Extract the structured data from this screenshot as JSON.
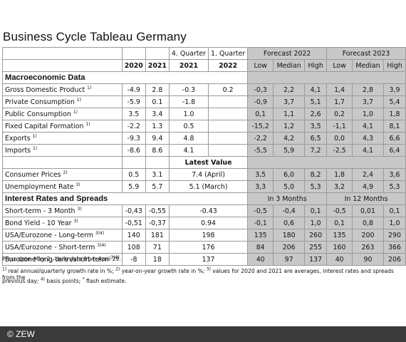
{
  "title": "Business Cycle Tableau Germany",
  "headers": {
    "q4": "4. Quarter",
    "q1": "1. Quarter",
    "forecast2022": "Forecast 2022",
    "forecast2023": "Forecast 2023",
    "y2020": "2020",
    "y2021": "2021",
    "q4year": "2021",
    "q1year": "2022",
    "low": "Low",
    "median": "Median",
    "high": "High"
  },
  "sections": {
    "macro": "Macroeconomic Data",
    "interest": "Interest Rates and Spreads",
    "latest": "Latest Value",
    "in3": "In 3 Months",
    "in12": "In 12 Months"
  },
  "macro_rows": [
    {
      "label": "Gross Domestic Product",
      "fn": "1)",
      "v": [
        "-4.9",
        "2.8",
        "-0.3",
        "0.2",
        "-0,3",
        "2,2",
        "4,1",
        "1,4",
        "2,8",
        "3,9"
      ]
    },
    {
      "label": "Private Consumption",
      "fn": "1)",
      "v": [
        "-5.9",
        "0.1",
        "-1.8",
        "",
        "-0,9",
        "3,7",
        "5,1",
        "1,7",
        "3,7",
        "5,4"
      ]
    },
    {
      "label": "Public Consumption",
      "fn": "1)",
      "v": [
        "3.5",
        "3.4",
        "1.0",
        "",
        "0,1",
        "1,1",
        "2,6",
        "0,2",
        "1,0",
        "1,8"
      ]
    },
    {
      "label": "Fixed Capital Formation",
      "fn": "1)",
      "v": [
        "-2.2",
        "1.3",
        "0.5",
        "",
        "-15,2",
        "1,2",
        "3,5",
        "-1,1",
        "4,1",
        "8,1"
      ]
    },
    {
      "label": "Exports",
      "fn": "1)",
      "v": [
        "-9.3",
        "9.4",
        "4.8",
        "",
        "-2,2",
        "4,2",
        "6,5",
        "0,0",
        "4,3",
        "6,6"
      ]
    },
    {
      "label": "Imports",
      "fn": "1)",
      "v": [
        "-8.6",
        "8.6",
        "4.1",
        "",
        "-5,5",
        "5,9",
        "7,2",
        "-2,5",
        "4,1",
        "6,4"
      ]
    }
  ],
  "latest_rows": [
    {
      "label": "Consumer Prices",
      "fn": "2)",
      "v": [
        "0.5",
        "3.1",
        "7.4 (April)",
        "3,5",
        "6,0",
        "8,2",
        "1,8",
        "2,4",
        "3,6"
      ]
    },
    {
      "label": "Unemployment Rate",
      "fn": "3)",
      "v": [
        "5.9",
        "5.7",
        "5.1 (March)",
        "3,3",
        "5,0",
        "5,3",
        "3,2",
        "4,9",
        "5,3"
      ]
    }
  ],
  "interest_rows": [
    {
      "label": "Short-term - 3 Month",
      "fn": "3)",
      "v": [
        "-0,43",
        "-0,55",
        "-0.43",
        "-0,5",
        "-0,4",
        "0,1",
        "-0,5",
        "0,01",
        "0,1"
      ]
    },
    {
      "label": "Bond Yield - 10 Year",
      "fn": "3)",
      "v": [
        "-0,51",
        "-0,37",
        "0.94",
        "-0,1",
        "0,6",
        "1,0",
        "0,1",
        "0,8",
        "1,0"
      ]
    },
    {
      "label": "USA/Eurozone - Long-term",
      "fn": "3)4)",
      "v": [
        "140",
        "181",
        "198",
        "135",
        "180",
        "260",
        "135",
        "200",
        "290"
      ]
    },
    {
      "label": "USA/Eurozone - Short-term",
      "fn": "3)4)",
      "v": [
        "108",
        "71",
        "176",
        "84",
        "206",
        "255",
        "160",
        "263",
        "366"
      ]
    },
    {
      "label": "Eurozone long-term/short-term",
      "fn": "3)4)",
      "v": [
        "-8",
        "18",
        "137",
        "40",
        "97",
        "137",
        "40",
        "90",
        "206"
      ]
    }
  ],
  "notes": {
    "press": "Press date: May 2 , daily data from April 29.",
    "l1": " real annual/quarterly growth rate in %;",
    "l2": " year-on-year growth rate in %;",
    "l3": " values for 2020 and 2021 are averages, interest rates and spreads from the",
    "l4": "previous day;",
    "l5": " basis points;",
    "l6": " flash estimate.",
    "f1": "1)",
    "f2": "2)",
    "f3": "3)",
    "f4": "4)",
    "f5": "*"
  },
  "footer": "© ZEW",
  "colors": {
    "forecast_bg": "#c8c8c8",
    "footer_bg": "#3a3a3a"
  }
}
